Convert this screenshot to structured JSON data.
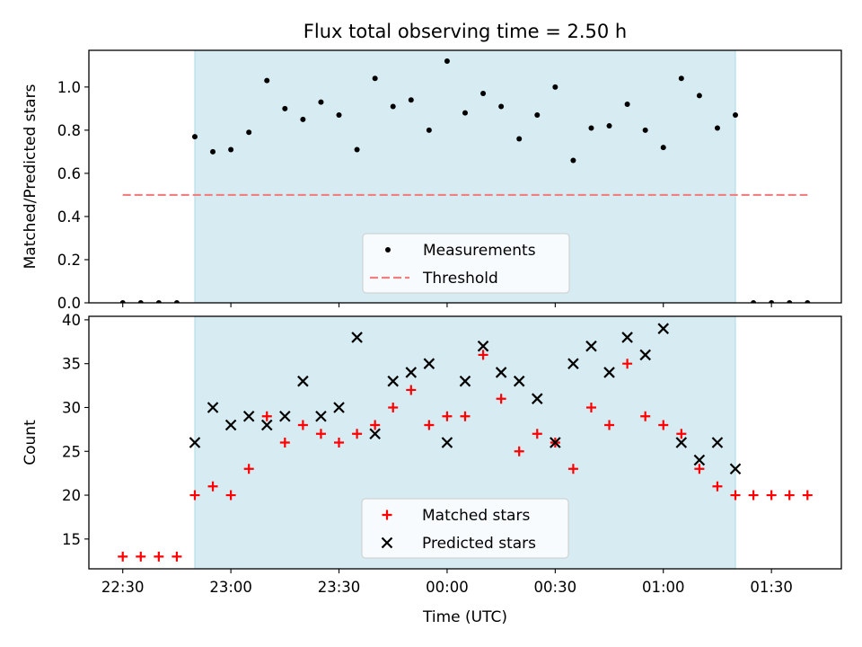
{
  "chart_data": [
    {
      "type": "scatter",
      "title": "Flux total observing time = 2.50 h",
      "xlabel": "",
      "ylabel": "Matched/Predicted stars",
      "ylim": [
        0,
        1.17
      ],
      "yticks": [
        "0.0",
        "0.2",
        "0.4",
        "0.6",
        "0.8",
        "1.0"
      ],
      "observing_window": [
        "22:50",
        "01:20"
      ],
      "legend": {
        "placement": "bottom-center",
        "entries": [
          "Measurements",
          "Threshold"
        ]
      },
      "series": [
        {
          "name": "Measurements",
          "marker": "dot",
          "color": "#000000",
          "x": [
            "22:30",
            "22:35",
            "22:40",
            "22:45",
            "22:50",
            "22:55",
            "23:00",
            "23:05",
            "23:10",
            "23:15",
            "23:20",
            "23:25",
            "23:30",
            "23:35",
            "23:40",
            "23:45",
            "23:50",
            "23:55",
            "00:00",
            "00:05",
            "00:10",
            "00:15",
            "00:20",
            "00:25",
            "00:30",
            "00:35",
            "00:40",
            "00:45",
            "00:50",
            "00:55",
            "01:00",
            "01:05",
            "01:10",
            "01:15",
            "01:20",
            "01:25",
            "01:30",
            "01:35",
            "01:40"
          ],
          "y": [
            0,
            0,
            0,
            0,
            0.77,
            0.7,
            0.71,
            0.79,
            1.03,
            0.9,
            0.85,
            0.93,
            0.87,
            0.71,
            1.04,
            0.91,
            0.94,
            0.8,
            1.12,
            0.88,
            0.97,
            0.91,
            0.76,
            0.87,
            1.0,
            0.66,
            0.81,
            0.82,
            0.92,
            0.8,
            0.72,
            1.04,
            0.96,
            0.81,
            0.87,
            0,
            0,
            0,
            0
          ]
        },
        {
          "name": "Threshold",
          "marker": "dashed-line",
          "color": "#f08080",
          "x": [
            "22:30",
            "01:40"
          ],
          "y": [
            0.5,
            0.5
          ]
        }
      ]
    },
    {
      "type": "scatter",
      "title": "",
      "xlabel": "Time (UTC)",
      "ylabel": "Count",
      "ylim": [
        11.6,
        40.4
      ],
      "yticks": [
        "15",
        "20",
        "25",
        "30",
        "35",
        "40"
      ],
      "xticks": [
        "22:30",
        "23:00",
        "23:30",
        "00:00",
        "00:30",
        "01:00",
        "01:30"
      ],
      "observing_window": [
        "22:50",
        "01:20"
      ],
      "legend": {
        "placement": "bottom-center",
        "entries": [
          "Matched stars",
          "Predicted stars"
        ]
      },
      "series": [
        {
          "name": "Matched stars",
          "marker": "plus",
          "color": "#ff0000",
          "x": [
            "22:30",
            "22:35",
            "22:40",
            "22:45",
            "22:50",
            "22:55",
            "23:00",
            "23:05",
            "23:10",
            "23:15",
            "23:20",
            "23:25",
            "23:30",
            "23:35",
            "23:40",
            "23:45",
            "23:50",
            "23:55",
            "00:00",
            "00:05",
            "00:10",
            "00:15",
            "00:20",
            "00:25",
            "00:30",
            "00:35",
            "00:40",
            "00:45",
            "00:50",
            "00:55",
            "01:00",
            "01:05",
            "01:10",
            "01:15",
            "01:20",
            "01:25",
            "01:30",
            "01:35",
            "01:40"
          ],
          "y": [
            13,
            13,
            13,
            13,
            20,
            21,
            20,
            23,
            29,
            26,
            28,
            27,
            26,
            27,
            28,
            30,
            32,
            28,
            29,
            29,
            36,
            31,
            25,
            27,
            26,
            23,
            30,
            28,
            35,
            29,
            28,
            27,
            23,
            21,
            20,
            20,
            20,
            20,
            20
          ]
        },
        {
          "name": "Predicted stars",
          "marker": "x",
          "color": "#000000",
          "x": [
            "22:50",
            "22:55",
            "23:00",
            "23:05",
            "23:10",
            "23:15",
            "23:20",
            "23:25",
            "23:30",
            "23:35",
            "23:40",
            "23:45",
            "23:50",
            "23:55",
            "00:00",
            "00:05",
            "00:10",
            "00:15",
            "00:20",
            "00:25",
            "00:30",
            "00:35",
            "00:40",
            "00:45",
            "00:50",
            "00:55",
            "01:00",
            "01:05",
            "01:10",
            "01:15",
            "01:20"
          ],
          "y": [
            26,
            30,
            28,
            29,
            28,
            29,
            33,
            29,
            30,
            38,
            27,
            33,
            34,
            35,
            26,
            33,
            37,
            34,
            33,
            31,
            26,
            35,
            37,
            34,
            38,
            36,
            39,
            26,
            24,
            26,
            23
          ]
        }
      ]
    }
  ]
}
